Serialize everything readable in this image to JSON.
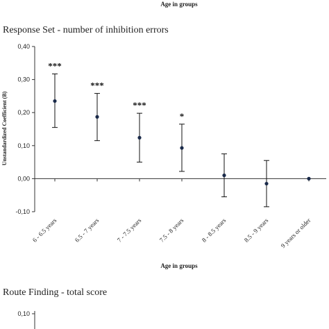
{
  "header": {
    "top_axis_label": "Age in groups"
  },
  "chart_data": [
    {
      "type": "scatter",
      "title": "Response Set - number of inhibition errors",
      "xlabel": "Age in groups",
      "ylabel": "Unstandardized Coefficient (B)",
      "ylim": [
        -0.1,
        0.4
      ],
      "yticks": [
        "-0,10",
        "0,00",
        "0,10",
        "0,20",
        "0,30",
        "0,40"
      ],
      "categories": [
        "6 - 6.5 years",
        "6.5 - 7 years",
        "7 - 7.5 years",
        "7.5 - 8 years",
        "8 - 8.5 years",
        "8.5 - 9 years",
        "9 years or older"
      ],
      "values": [
        0.235,
        0.187,
        0.124,
        0.093,
        0.01,
        -0.015,
        0.0
      ],
      "lower": [
        0.155,
        0.115,
        0.05,
        0.022,
        -0.055,
        -0.085,
        0.0
      ],
      "upper": [
        0.317,
        0.258,
        0.198,
        0.165,
        0.075,
        0.055,
        0.0
      ],
      "significance": [
        "***",
        "***",
        "***",
        "*",
        "",
        "",
        ""
      ],
      "grid": false,
      "color": "#1a2a4a"
    },
    {
      "type": "scatter",
      "title": "Route Finding - total score",
      "yticks": [
        "0,10"
      ]
    }
  ]
}
